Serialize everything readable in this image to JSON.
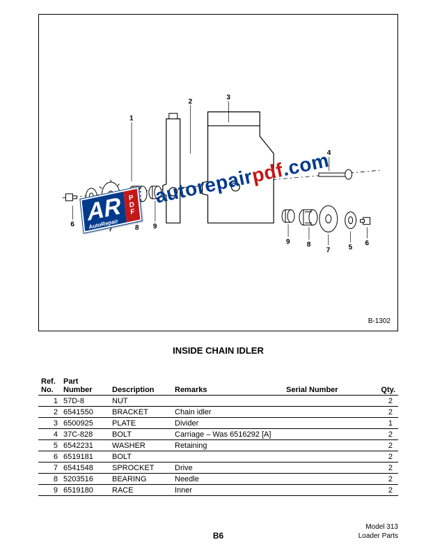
{
  "diagram": {
    "code": "B-1302",
    "callouts": [
      "1",
      "2",
      "3",
      "4",
      "5",
      "6",
      "7",
      "8",
      "9"
    ]
  },
  "watermark": {
    "logo_main": "AR",
    "logo_sub": "AutoRepair",
    "logo_side_p": "P",
    "logo_side_d": "D",
    "logo_side_f": "F",
    "url_part1": "autorepair",
    "url_part2": "pdf",
    "url_part3": ".com"
  },
  "title": "INSIDE CHAIN IDLER",
  "table": {
    "headers": {
      "ref_line1": "Ref.",
      "ref_line2": "No.",
      "part_line1": "Part",
      "part_line2": "Number",
      "desc": "Description",
      "remarks": "Remarks",
      "serial": "Serial Number",
      "qty": "Qty."
    },
    "rows": [
      {
        "ref": "1",
        "part": "57D-8",
        "desc": "NUT",
        "remarks": "",
        "qty": "2",
        "group_end": false
      },
      {
        "ref": "2",
        "part": "6541550",
        "desc": "BRACKET",
        "remarks": "Chain idler",
        "qty": "2",
        "group_end": false
      },
      {
        "ref": "3",
        "part": "6500925",
        "desc": "PLATE",
        "remarks": "Divider",
        "qty": "1",
        "group_end": true
      },
      {
        "ref": "4",
        "part": "37C-828",
        "desc": "BOLT",
        "remarks": "Carriage – Was 6516292 [A]",
        "qty": "2",
        "group_end": false
      },
      {
        "ref": "5",
        "part": "6542231",
        "desc": "WASHER",
        "remarks": "Retaining",
        "qty": "2",
        "group_end": false
      },
      {
        "ref": "6",
        "part": "6519181",
        "desc": "BOLT",
        "remarks": "",
        "qty": "2",
        "group_end": true
      },
      {
        "ref": "7",
        "part": "6541548",
        "desc": "SPROCKET",
        "remarks": "Drive",
        "qty": "2",
        "group_end": false
      },
      {
        "ref": "8",
        "part": "5203516",
        "desc": "BEARING",
        "remarks": "Needle",
        "qty": "2",
        "group_end": false
      },
      {
        "ref": "9",
        "part": "6519180",
        "desc": "RACE",
        "remarks": "Inner",
        "qty": "2",
        "group_end": true
      }
    ]
  },
  "footer": {
    "page": "B6",
    "model": "Model 313",
    "sub": "Loader Parts"
  },
  "colors": {
    "brand_blue": "#003a8c",
    "brand_red": "#c31818",
    "line": "#000000",
    "bg": "#ffffff"
  }
}
